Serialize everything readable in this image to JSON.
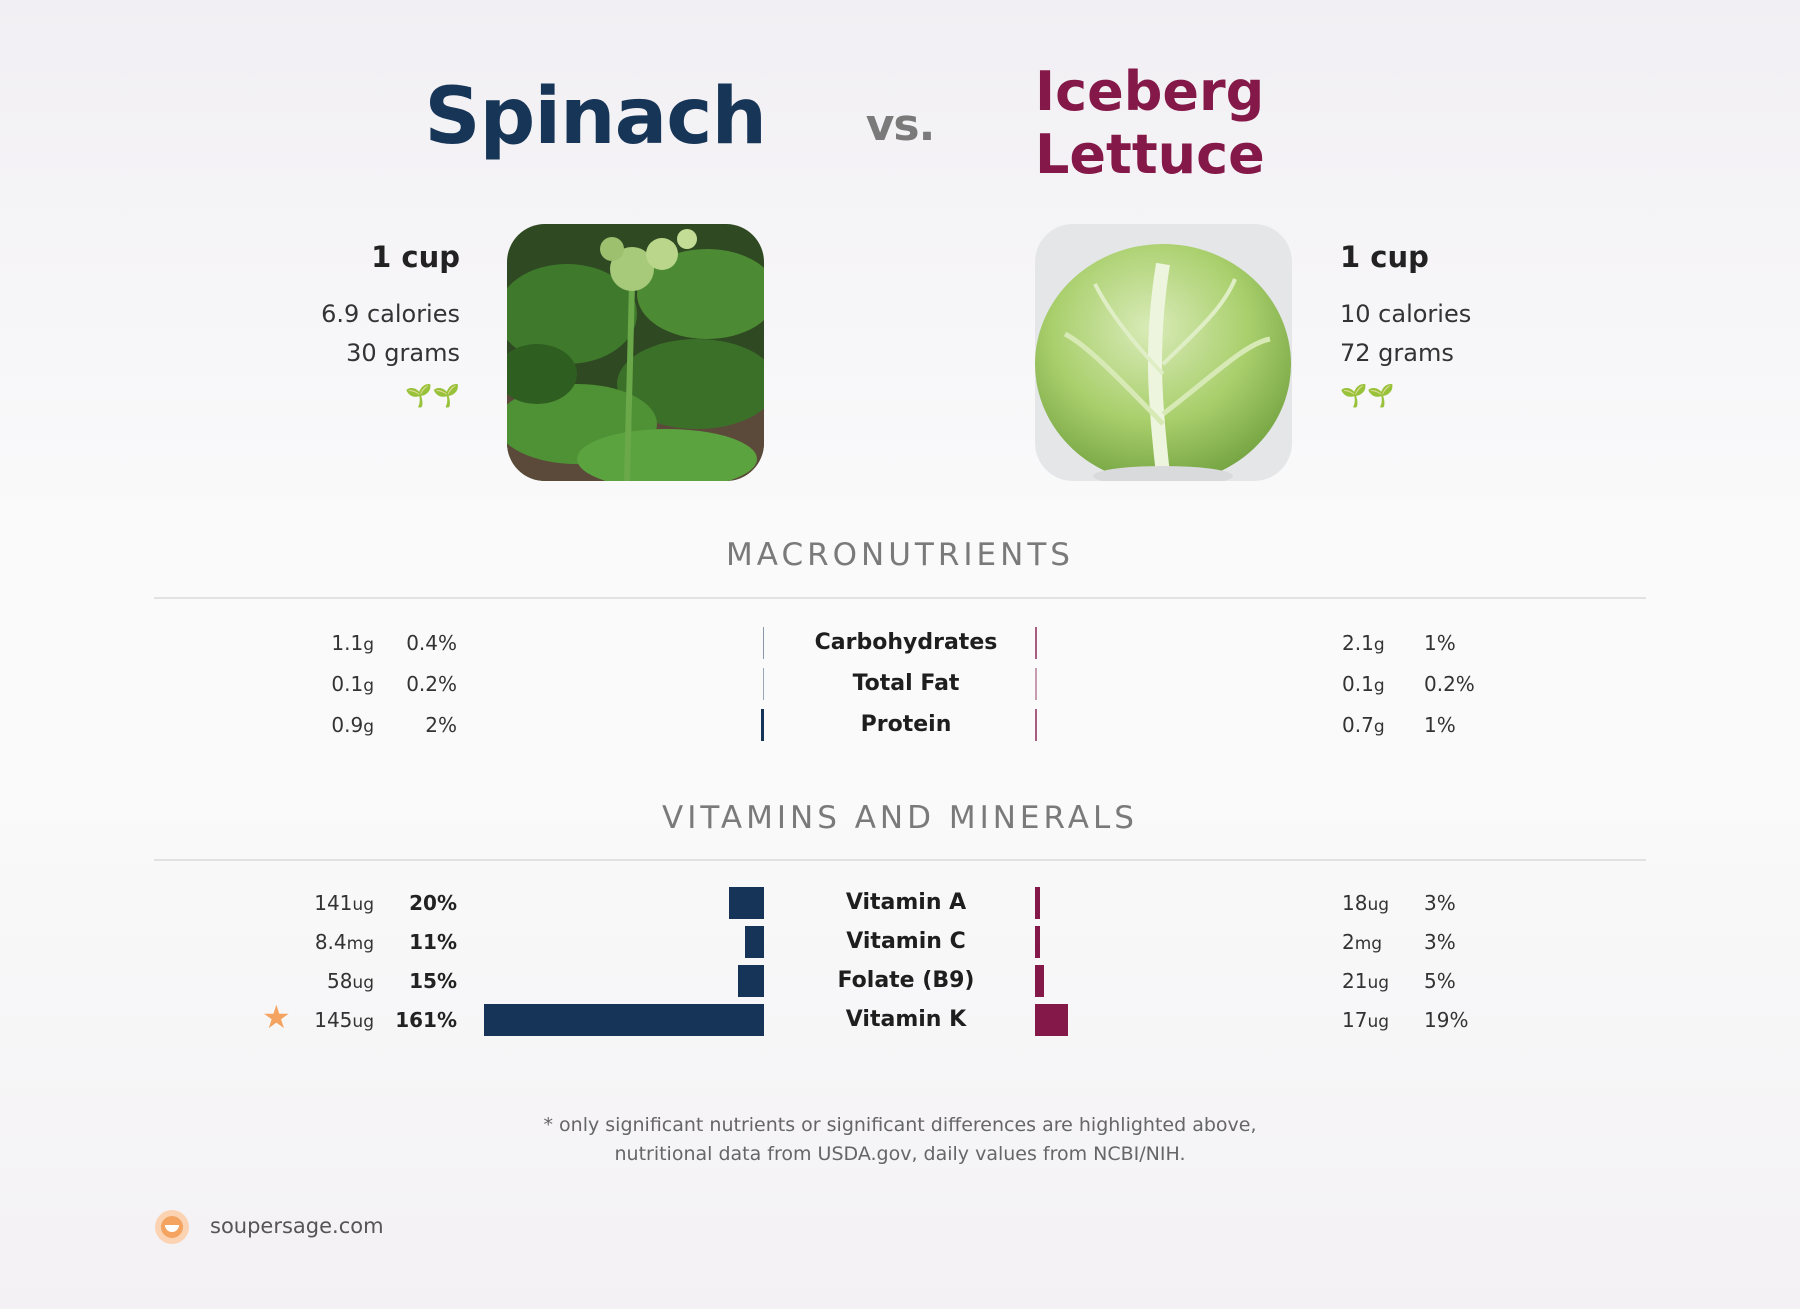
{
  "header": {
    "left_title": "Spinach",
    "vs": "vs.",
    "right_title_line1": "Iceberg",
    "right_title_line2": "Lettuce"
  },
  "left_food": {
    "serving": "1 cup",
    "calories": "6.9 calories",
    "grams": "30 grams",
    "sprouts": "🌱🌱",
    "image_icon": "spinach-photo"
  },
  "right_food": {
    "serving": "1 cup",
    "calories": "10 calories",
    "grams": "72 grams",
    "sprouts": "🌱🌱",
    "image_icon": "iceberg-lettuce-photo"
  },
  "sections": {
    "macros": "MACRONUTRIENTS",
    "vitamins": "VITAMINS AND MINERALS"
  },
  "footnote": {
    "line1": "* only significant nutrients or significant differences are highlighted above,",
    "line2": "nutritional data from USDA.gov, daily values from NCBI/NIH."
  },
  "brand": {
    "name": "soupersage.com"
  },
  "colors": {
    "left": "#163457",
    "right": "#841848",
    "star": "#f4a460",
    "sprout": "#2b8a1a"
  },
  "chart_data": {
    "type": "bar",
    "series": [
      {
        "name": "Spinach",
        "color": "#163457"
      },
      {
        "name": "Iceberg Lettuce",
        "color": "#841848"
      }
    ],
    "macronutrients": [
      {
        "nutrient": "Carbohydrates",
        "left_amount": "1.1",
        "left_unit": "g",
        "left_pct": "0.4%",
        "left_dv": 0.4,
        "right_amount": "2.1",
        "right_unit": "g",
        "right_pct": "1%",
        "right_dv": 1
      },
      {
        "nutrient": "Total Fat",
        "left_amount": "0.1",
        "left_unit": "g",
        "left_pct": "0.2%",
        "left_dv": 0.2,
        "right_amount": "0.1",
        "right_unit": "g",
        "right_pct": "0.2%",
        "right_dv": 0.2
      },
      {
        "nutrient": "Protein",
        "left_amount": "0.9",
        "left_unit": "g",
        "left_pct": "2%",
        "left_dv": 2,
        "right_amount": "0.7",
        "right_unit": "g",
        "right_pct": "1%",
        "right_dv": 1
      }
    ],
    "vitamins": [
      {
        "nutrient": "Vitamin A",
        "left_amount": "141",
        "left_unit": "ug",
        "left_pct": "20%",
        "left_dv": 20,
        "right_amount": "18",
        "right_unit": "ug",
        "right_pct": "3%",
        "right_dv": 3,
        "star": false
      },
      {
        "nutrient": "Vitamin C",
        "left_amount": "8.4",
        "left_unit": "mg",
        "left_pct": "11%",
        "left_dv": 11,
        "right_amount": "2",
        "right_unit": "mg",
        "right_pct": "3%",
        "right_dv": 3,
        "star": false
      },
      {
        "nutrient": "Folate (B9)",
        "left_amount": "58",
        "left_unit": "ug",
        "left_pct": "15%",
        "left_dv": 15,
        "right_amount": "21",
        "right_unit": "ug",
        "right_pct": "5%",
        "right_dv": 5,
        "star": false
      },
      {
        "nutrient": "Vitamin K",
        "left_amount": "145",
        "left_unit": "ug",
        "left_pct": "161%",
        "left_dv": 161,
        "right_amount": "17",
        "right_unit": "ug",
        "right_pct": "19%",
        "right_dv": 19,
        "star": true
      }
    ]
  }
}
